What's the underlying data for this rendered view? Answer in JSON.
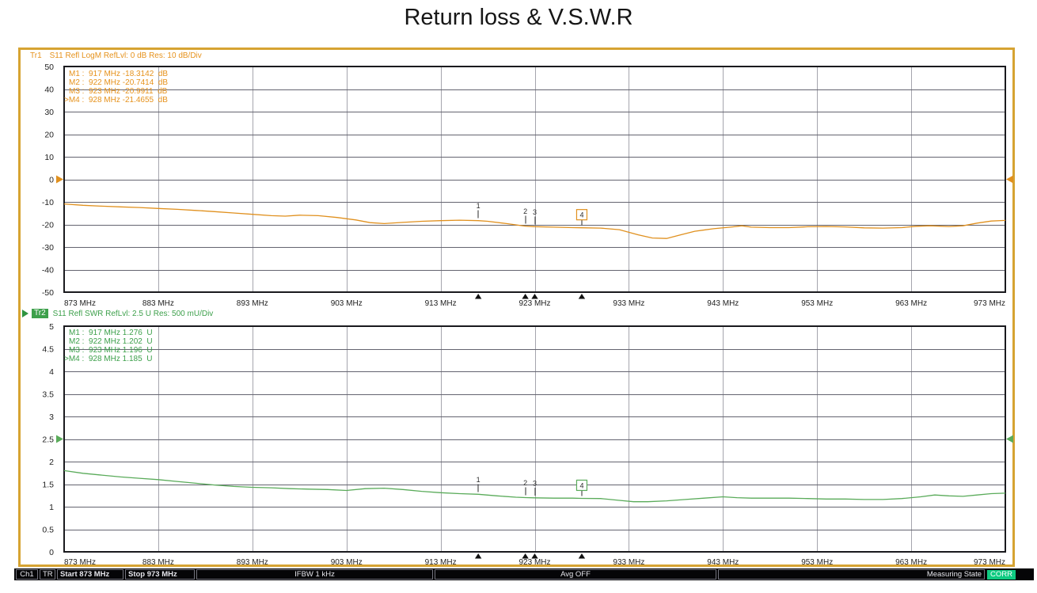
{
  "title": "Return loss & V.S.W.R",
  "colors": {
    "frame": "#d6a332",
    "trace1": "#e0901e",
    "text1": "#e6921c",
    "trace2": "#5aab5a",
    "text2": "#3da04b",
    "grid_h": "#646470",
    "grid_v": "#a5a5ad",
    "plot_border": "#1a1a1e",
    "marker_ink": "#2a2a2a",
    "status_bg": "#050507",
    "corr_bg": "#0fcb82",
    "tr2_badge_bg": "#3da04b"
  },
  "chart_data": [
    {
      "type": "line",
      "name": "return-loss",
      "trace_label": "Tr1",
      "settings": "S11 Refl LogM RefLvl: 0 dB Res: 10 dB/Div",
      "x_range": [
        873,
        973
      ],
      "x_ticks": [
        "873 MHz",
        "883 MHz",
        "893 MHz",
        "903 MHz",
        "913 MHz",
        "923 MHz",
        "933 MHz",
        "943 MHz",
        "953 MHz",
        "963 MHz",
        "973 MHz"
      ],
      "y_range": [
        -50,
        50
      ],
      "y_ticks": [
        "50",
        "40",
        "30",
        "20",
        "10",
        "0",
        "-10",
        "-20",
        "-30",
        "-40",
        "-50"
      ],
      "ref_level": 0,
      "markers": [
        {
          "num": "1",
          "name": "M1",
          "freq": 917,
          "freq_label": "917 MHz",
          "value": -18.3142,
          "value_label": "-18.3142  dB",
          "active": false
        },
        {
          "num": "2",
          "name": "M2",
          "freq": 922,
          "freq_label": "922 MHz",
          "value": -20.7414,
          "value_label": "-20.7414  dB",
          "active": false
        },
        {
          "num": "3",
          "name": "M3",
          "freq": 923,
          "freq_label": "923 MHz",
          "value": -20.9911,
          "value_label": "-20.9911  dB",
          "active": false
        },
        {
          "num": "4",
          "name": "M4",
          "freq": 928,
          "freq_label": "928 MHz",
          "value": -21.4655,
          "value_label": "-21.4655  dB",
          "active": true
        }
      ],
      "series": [
        [
          873,
          -10.9
        ],
        [
          875,
          -11.5
        ],
        [
          877,
          -11.9
        ],
        [
          879,
          -12.2
        ],
        [
          881,
          -12.5
        ],
        [
          883,
          -12.9
        ],
        [
          885,
          -13.3
        ],
        [
          887,
          -13.8
        ],
        [
          889,
          -14.3
        ],
        [
          891,
          -14.9
        ],
        [
          893,
          -15.5
        ],
        [
          895,
          -16.1
        ],
        [
          896.5,
          -16.3
        ],
        [
          898,
          -15.9
        ],
        [
          900,
          -16.1
        ],
        [
          902,
          -16.9
        ],
        [
          904,
          -18.0
        ],
        [
          905.5,
          -19.2
        ],
        [
          907,
          -19.6
        ],
        [
          909,
          -19.1
        ],
        [
          911,
          -18.6
        ],
        [
          913,
          -18.3
        ],
        [
          915,
          -18.1
        ],
        [
          917,
          -18.3142
        ],
        [
          918,
          -18.6
        ],
        [
          920,
          -19.6
        ],
        [
          922,
          -20.7414
        ],
        [
          923,
          -20.9911
        ],
        [
          925,
          -21.2
        ],
        [
          927,
          -21.4
        ],
        [
          928,
          -21.4655
        ],
        [
          930,
          -21.6
        ],
        [
          932,
          -22.3
        ],
        [
          934,
          -24.6
        ],
        [
          935.5,
          -26.0
        ],
        [
          937,
          -26.2
        ],
        [
          938.5,
          -24.6
        ],
        [
          940,
          -23.0
        ],
        [
          942,
          -21.9
        ],
        [
          944,
          -21.1
        ],
        [
          945,
          -20.6
        ],
        [
          946,
          -21.2
        ],
        [
          948,
          -21.4
        ],
        [
          950,
          -21.4
        ],
        [
          952,
          -21.0
        ],
        [
          954,
          -20.9
        ],
        [
          956,
          -21.1
        ],
        [
          958,
          -21.5
        ],
        [
          960,
          -21.6
        ],
        [
          962,
          -21.4
        ],
        [
          963.5,
          -20.8
        ],
        [
          965,
          -20.6
        ],
        [
          967,
          -20.9
        ],
        [
          968.5,
          -20.6
        ],
        [
          970,
          -19.4
        ],
        [
          971.5,
          -18.5
        ],
        [
          973,
          -18.2
        ]
      ]
    },
    {
      "type": "line",
      "name": "vswr",
      "trace_label": "Tr2",
      "settings": "S11 Refl SWR RefLvl: 2.5 U Res: 500 mU/Div",
      "x_range": [
        873,
        973
      ],
      "x_ticks": [
        "873 MHz",
        "883 MHz",
        "893 MHz",
        "903 MHz",
        "913 MHz",
        "923 MHz",
        "933 MHz",
        "943 MHz",
        "953 MHz",
        "963 MHz",
        "973 MHz"
      ],
      "y_range": [
        0,
        5
      ],
      "y_ticks": [
        "5",
        "4.5",
        "4",
        "3.5",
        "3",
        "2.5",
        "2",
        "1.5",
        "1",
        "0.5",
        "0"
      ],
      "ref_level": 2.5,
      "markers": [
        {
          "num": "1",
          "name": "M1",
          "freq": 917,
          "freq_label": "917 MHz",
          "value": 1.276,
          "value_label": "1.276  U",
          "active": false
        },
        {
          "num": "2",
          "name": "M2",
          "freq": 922,
          "freq_label": "922 MHz",
          "value": 1.202,
          "value_label": "1.202  U",
          "active": false
        },
        {
          "num": "3",
          "name": "M3",
          "freq": 923,
          "freq_label": "923 MHz",
          "value": 1.196,
          "value_label": "1.196  U",
          "active": false
        },
        {
          "num": "4",
          "name": "M4",
          "freq": 928,
          "freq_label": "928 MHz",
          "value": 1.185,
          "value_label": "1.185  U",
          "active": true
        }
      ],
      "series": [
        [
          873,
          1.8
        ],
        [
          875,
          1.74
        ],
        [
          877,
          1.7
        ],
        [
          879,
          1.66
        ],
        [
          881,
          1.63
        ],
        [
          883,
          1.6
        ],
        [
          885,
          1.56
        ],
        [
          887,
          1.52
        ],
        [
          889,
          1.48
        ],
        [
          891,
          1.45
        ],
        [
          893,
          1.43
        ],
        [
          895,
          1.42
        ],
        [
          897,
          1.4
        ],
        [
          899,
          1.39
        ],
        [
          901,
          1.38
        ],
        [
          903,
          1.36
        ],
        [
          905,
          1.4
        ],
        [
          907,
          1.41
        ],
        [
          909,
          1.38
        ],
        [
          911,
          1.34
        ],
        [
          913,
          1.31
        ],
        [
          915,
          1.29
        ],
        [
          917,
          1.276
        ],
        [
          919,
          1.24
        ],
        [
          921,
          1.21
        ],
        [
          922,
          1.202
        ],
        [
          923,
          1.196
        ],
        [
          925,
          1.19
        ],
        [
          927,
          1.19
        ],
        [
          928,
          1.185
        ],
        [
          930,
          1.18
        ],
        [
          932,
          1.14
        ],
        [
          933.5,
          1.11
        ],
        [
          935,
          1.11
        ],
        [
          937,
          1.13
        ],
        [
          939,
          1.16
        ],
        [
          941,
          1.19
        ],
        [
          943,
          1.22
        ],
        [
          944.5,
          1.2
        ],
        [
          946,
          1.19
        ],
        [
          948,
          1.19
        ],
        [
          950,
          1.19
        ],
        [
          952,
          1.18
        ],
        [
          954,
          1.17
        ],
        [
          956,
          1.17
        ],
        [
          958,
          1.16
        ],
        [
          960,
          1.16
        ],
        [
          962,
          1.18
        ],
        [
          964,
          1.22
        ],
        [
          965.5,
          1.26
        ],
        [
          967,
          1.24
        ],
        [
          968.5,
          1.23
        ],
        [
          970,
          1.26
        ],
        [
          971.5,
          1.29
        ],
        [
          973,
          1.3
        ]
      ]
    }
  ],
  "status_bar": {
    "cells": [
      "Ch1",
      "TR",
      "Start 873 MHz",
      "Stop 973 MHz",
      "IFBW 1 kHz",
      "Avg OFF",
      "Measuring State"
    ],
    "corr_label": "CORR"
  }
}
